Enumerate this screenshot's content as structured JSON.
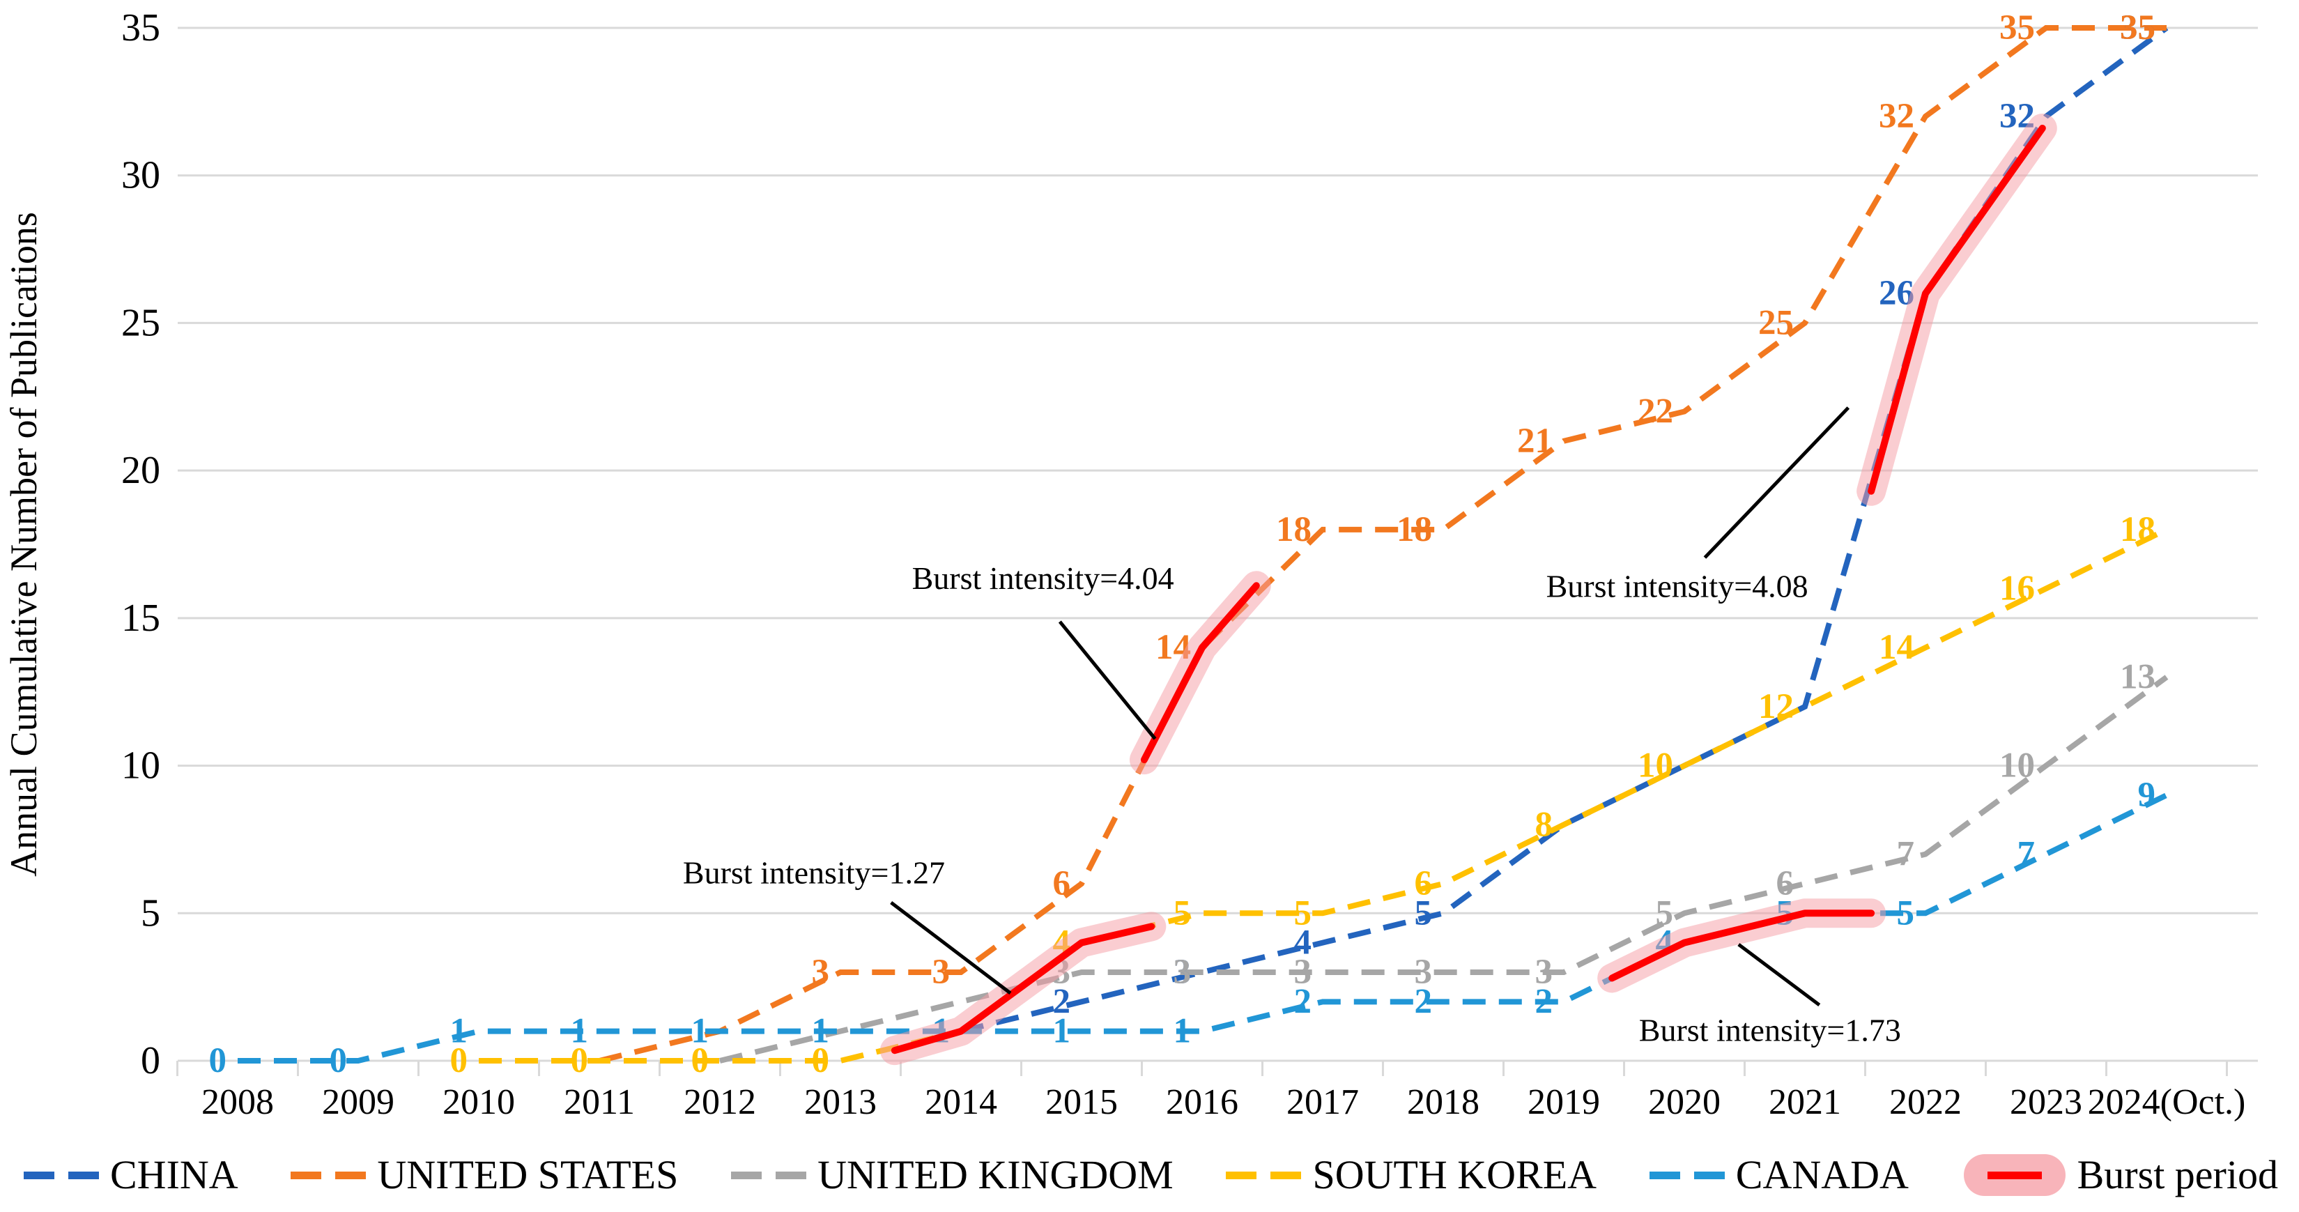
{
  "figure": {
    "background": "#FFFFFF",
    "grid_color": "#D9D9D9",
    "axis_color": "#D9D9D9",
    "text_color": "#000000"
  },
  "chart_data": {
    "type": "line",
    "title": "",
    "xlabel": "",
    "ylabel": "Annual Cumulative Number of Publications",
    "ylim": [
      0,
      35
    ],
    "y_ticks": [
      0,
      5,
      10,
      15,
      20,
      25,
      30,
      35
    ],
    "grid": true,
    "legend_position": "bottom",
    "categories": [
      2008,
      2009,
      2010,
      2011,
      2012,
      2013,
      2014,
      2015,
      2016,
      2017,
      2018,
      2019,
      2020,
      2021,
      2022,
      2023,
      2024
    ],
    "x_tick_labels": [
      "2008",
      "2009",
      "2010",
      "2011",
      "2012",
      "2013",
      "2014",
      "2015",
      "2016",
      "2017",
      "2018",
      "2019",
      "2020",
      "2021",
      "2022",
      "2023",
      "2024(Oct.)"
    ],
    "series": [
      {
        "name": "CHINA",
        "color": "#2364BE",
        "line_style": "dashed",
        "values": [
          null,
          null,
          null,
          null,
          null,
          null,
          1,
          2,
          3,
          4,
          5,
          8,
          10,
          12,
          26,
          32,
          35
        ],
        "labels": [
          "",
          "",
          "",
          "",
          "",
          "",
          "1",
          "2",
          "3",
          "4",
          "5",
          "",
          "",
          "",
          "26",
          "32",
          "35"
        ]
      },
      {
        "name": "UNITED STATES",
        "color": "#F2781F",
        "line_style": "dashed",
        "values": [
          null,
          null,
          null,
          0,
          1,
          3,
          3,
          6,
          14,
          18,
          18,
          21,
          22,
          25,
          32,
          35,
          35
        ],
        "labels": [
          "",
          "",
          "",
          "",
          "",
          "3",
          "3",
          "6",
          "14",
          "18",
          "18",
          "21",
          "22",
          "25",
          "32",
          "35",
          "35"
        ]
      },
      {
        "name": "UNITED KINGDOM",
        "color": "#A6A6A6",
        "line_style": "dashed",
        "values": [
          null,
          null,
          null,
          null,
          0,
          1,
          2,
          3,
          3,
          3,
          3,
          3,
          5,
          6,
          7,
          10,
          13
        ],
        "labels": [
          "",
          "",
          "",
          "",
          "",
          "",
          "",
          "3",
          "3",
          "3",
          "3",
          "3",
          "5",
          "6",
          "7",
          "10",
          "13"
        ]
      },
      {
        "name": "SOUTH KOREA",
        "color": "#FFC000",
        "line_style": "dashed",
        "values": [
          null,
          null,
          0,
          0,
          0,
          0,
          1,
          4,
          5,
          5,
          6,
          8,
          10,
          12,
          14,
          16,
          18
        ],
        "labels": [
          "",
          "",
          "0",
          "0",
          "0",
          "0",
          "",
          "4",
          "5",
          "5",
          "6",
          "8",
          "10",
          "12",
          "14",
          "16",
          "18"
        ]
      },
      {
        "name": "CANADA",
        "color": "#2196D6",
        "line_style": "dashed",
        "values": [
          0,
          0,
          1,
          1,
          1,
          1,
          1,
          1,
          1,
          2,
          2,
          2,
          4,
          5,
          5,
          7,
          9
        ],
        "labels": [
          "0",
          "0",
          "1",
          "1",
          "1",
          "1",
          "1",
          "1",
          "1",
          "2",
          "2",
          "2",
          "4",
          "5",
          "5",
          "7",
          "9"
        ]
      }
    ],
    "bursts": [
      {
        "name": "south-korea-burst",
        "points": [
          [
            2013.45,
            0.35
          ],
          [
            2014,
            1
          ],
          [
            2015,
            4
          ],
          [
            2015.58,
            4.55
          ]
        ]
      },
      {
        "name": "united-states-burst",
        "points": [
          [
            2015.52,
            10.2
          ],
          [
            2016,
            14
          ],
          [
            2016.45,
            16.1
          ]
        ]
      },
      {
        "name": "canada-burst",
        "points": [
          [
            2019.4,
            2.8
          ],
          [
            2020,
            4
          ],
          [
            2021,
            5
          ],
          [
            2021.55,
            5
          ]
        ]
      },
      {
        "name": "china-burst",
        "points": [
          [
            2021.55,
            19.3
          ],
          [
            2022,
            26
          ],
          [
            2022.97,
            31.6
          ]
        ]
      }
    ],
    "burst_style": {
      "red": "#FF0000",
      "glow": "#F59CA3"
    },
    "annotations": [
      {
        "text": "Burst intensity=1.27",
        "tx": 2012.78,
        "ty": 6.38,
        "line": [
          [
            2013.42,
            5.36
          ],
          [
            2014.41,
            2.29
          ]
        ]
      },
      {
        "text": "Burst intensity=4.04",
        "tx": 2014.68,
        "ty": 16.35,
        "line": [
          [
            2014.82,
            14.88
          ],
          [
            2015.61,
            10.91
          ]
        ]
      },
      {
        "text": "Burst intensity=4.08",
        "tx": 2019.94,
        "ty": 16.08,
        "line": [
          [
            2020.17,
            17.05
          ],
          [
            2021.36,
            22.13
          ]
        ]
      },
      {
        "text": "Burst intensity=1.73",
        "tx": 2020.71,
        "ty": 1.04,
        "line": [
          [
            2020.45,
            3.94
          ],
          [
            2021.12,
            1.89
          ]
        ]
      }
    ],
    "legend": [
      {
        "label": "CHINA",
        "type": "dash",
        "color": "#2364BE"
      },
      {
        "label": "UNITED STATES",
        "type": "dash",
        "color": "#F2781F"
      },
      {
        "label": "UNITED KINGDOM",
        "type": "dash",
        "color": "#A6A6A6"
      },
      {
        "label": "SOUTH KOREA",
        "type": "dash",
        "color": "#FFC000"
      },
      {
        "label": "CANADA",
        "type": "dash",
        "color": "#2196D6"
      },
      {
        "label": "Burst period",
        "type": "burst",
        "color": "#FF0000",
        "glow": "#F8B4BA"
      }
    ]
  }
}
